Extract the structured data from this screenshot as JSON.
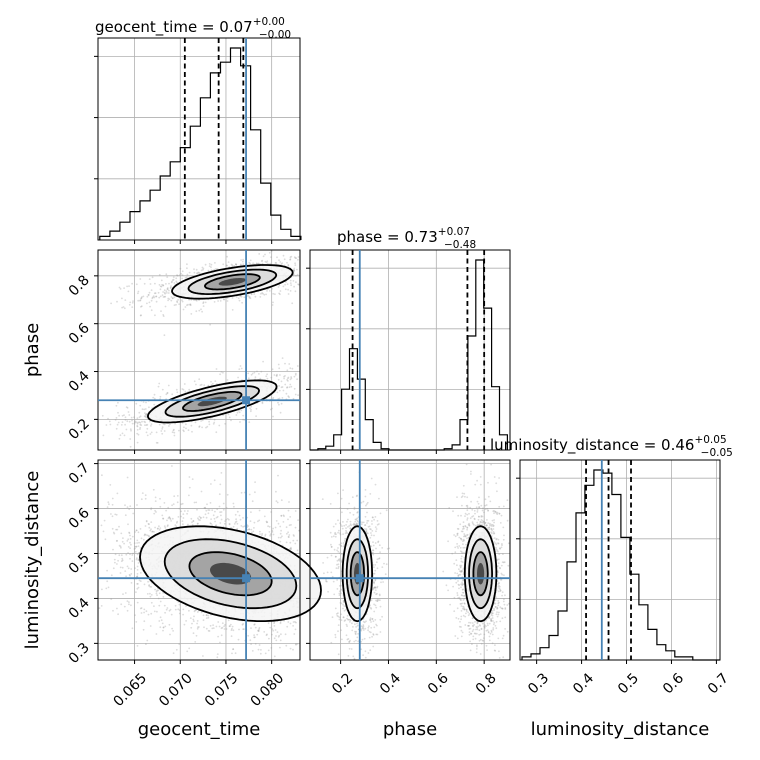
{
  "chart_data": {
    "type": "corner",
    "parameters": [
      "geocent_time",
      "phase",
      "luminosity_distance"
    ],
    "titles": [
      {
        "param": "geocent_time",
        "text": "geocent_time = 0.07",
        "sup": "+0.00",
        "sub": "−0.00"
      },
      {
        "param": "phase",
        "text": "phase = 0.73",
        "sup": "+0.07",
        "sub": "−0.48"
      },
      {
        "param": "luminosity_distance",
        "text": "luminosity_distance = 0.46",
        "sup": "+0.05",
        "sub": "−0.05"
      }
    ],
    "ranges": {
      "geocent_time": [
        0.061,
        0.0831
      ],
      "phase": [
        0.072,
        0.908
      ],
      "luminosity_distance": [
        0.263,
        0.708
      ]
    },
    "ticks": {
      "geocent_time": {
        "values": [
          0.065,
          0.07,
          0.075,
          0.08
        ],
        "labels": [
          "0.065",
          "0.070",
          "0.075",
          "0.080"
        ]
      },
      "phase": {
        "values": [
          0.2,
          0.4,
          0.6,
          0.8
        ],
        "labels": [
          "0.2",
          "0.4",
          "0.6",
          "0.8"
        ]
      },
      "luminosity_distance": {
        "values": [
          0.3,
          0.4,
          0.5,
          0.6,
          0.7
        ],
        "labels": [
          "0.3",
          "0.4",
          "0.5",
          "0.6",
          "0.7"
        ]
      }
    },
    "truths": {
      "geocent_time": 0.0772,
      "phase": 0.28,
      "luminosity_distance": 0.445
    },
    "quantiles": {
      "geocent_time": [
        0.0705,
        0.0742,
        0.0769
      ],
      "phase": [
        0.25,
        0.73,
        0.8
      ],
      "luminosity_distance": [
        0.41,
        0.46,
        0.51
      ]
    },
    "histograms": {
      "geocent_time": {
        "edges": [
          0.0612,
          0.0623,
          0.0634,
          0.0645,
          0.0656,
          0.0667,
          0.0678,
          0.0689,
          0.07,
          0.0711,
          0.0722,
          0.0733,
          0.0744,
          0.0755,
          0.0766,
          0.0777,
          0.0788,
          0.0799,
          0.081,
          0.0821,
          0.0832
        ],
        "counts": [
          2,
          5,
          10,
          16,
          22,
          28,
          36,
          44,
          52,
          64,
          80,
          94,
          100,
          108,
          98,
          62,
          32,
          14,
          6,
          2
        ]
      },
      "phase": {
        "edges": [
          0.072,
          0.105,
          0.138,
          0.171,
          0.204,
          0.237,
          0.27,
          0.303,
          0.336,
          0.369,
          0.402,
          0.435,
          0.468,
          0.501,
          0.534,
          0.567,
          0.6,
          0.633,
          0.666,
          0.699,
          0.732,
          0.765,
          0.798,
          0.831,
          0.864,
          0.897
        ],
        "counts": [
          0,
          1,
          3,
          12,
          48,
          80,
          56,
          24,
          6,
          1,
          0,
          0,
          0,
          0,
          0,
          0,
          0,
          1,
          4,
          24,
          90,
          150,
          112,
          50,
          12
        ]
      },
      "luminosity_distance": {
        "edges": [
          0.2675,
          0.2875,
          0.3075,
          0.3275,
          0.3475,
          0.3675,
          0.3875,
          0.4075,
          0.4275,
          0.4475,
          0.4675,
          0.4875,
          0.5075,
          0.5275,
          0.5475,
          0.5675,
          0.5875,
          0.6075,
          0.6275,
          0.6475,
          0.6675,
          0.6875,
          0.7075
        ],
        "counts": [
          1,
          2,
          4,
          8,
          16,
          32,
          48,
          57,
          62,
          61,
          54,
          40,
          28,
          18,
          10,
          5,
          3,
          1,
          1,
          0,
          0,
          0
        ]
      }
    },
    "grid": true,
    "colors": {
      "truth": "#4682b4",
      "contour": "#000000",
      "scatter": "#9a9a9a",
      "histogram": "#000000"
    }
  }
}
